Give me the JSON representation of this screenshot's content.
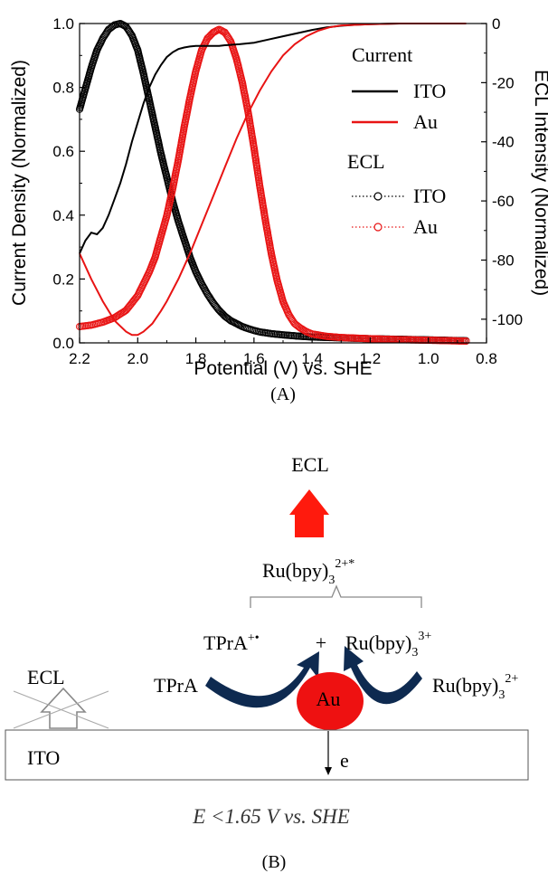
{
  "chart_data": {
    "type": "line",
    "xlabel": "Potential (V) vs. SHE",
    "ylabel": "Current Density (Normalized)",
    "ylabel_right": "ECL Intensity (Normalized)",
    "xlim": [
      2.2,
      0.8
    ],
    "ylim": [
      0.0,
      1.0
    ],
    "ylim_right": [
      -108,
      0
    ],
    "x_ticks": [
      "2.2",
      "2.0",
      "1.8",
      "1.6",
      "1.4",
      "1.2",
      "1.0",
      "0.8"
    ],
    "y_ticks": [
      "0.0",
      "0.2",
      "0.4",
      "0.6",
      "0.8",
      "1.0"
    ],
    "y_ticks_right": [
      "0",
      "-20",
      "-40",
      "-60",
      "-80",
      "-100"
    ],
    "legend_placement": "top-right",
    "legend": {
      "current_title": "Current",
      "ecl_title": "ECL",
      "ito_label": "ITO",
      "au_label": "Au"
    },
    "series": [
      {
        "group": "current",
        "name": "ITO",
        "color": "#000000",
        "style": "solid",
        "x": [
          2.2,
          2.18,
          2.16,
          2.14,
          2.12,
          2.1,
          2.08,
          2.06,
          2.04,
          2.02,
          2.0,
          1.98,
          1.96,
          1.94,
          1.92,
          1.9,
          1.88,
          1.86,
          1.84,
          1.82,
          1.8,
          1.78,
          1.76,
          1.74,
          1.72,
          1.7,
          1.65,
          1.6,
          1.55,
          1.5,
          1.45,
          1.4,
          1.35,
          1.3,
          1.25,
          1.2,
          1.1,
          1.0,
          0.87
        ],
        "y": [
          0.28,
          0.32,
          0.345,
          0.34,
          0.36,
          0.4,
          0.45,
          0.5,
          0.56,
          0.63,
          0.69,
          0.75,
          0.8,
          0.84,
          0.87,
          0.895,
          0.91,
          0.92,
          0.925,
          0.928,
          0.93,
          0.93,
          0.93,
          0.93,
          0.93,
          0.932,
          0.935,
          0.94,
          0.95,
          0.96,
          0.97,
          0.98,
          0.988,
          0.993,
          0.996,
          0.998,
          1.0,
          1.0,
          1.0
        ]
      },
      {
        "group": "current",
        "name": "Au",
        "color": "#e81414",
        "style": "solid",
        "x": [
          2.2,
          2.16,
          2.12,
          2.08,
          2.04,
          2.02,
          2.0,
          1.98,
          1.95,
          1.92,
          1.9,
          1.86,
          1.82,
          1.78,
          1.74,
          1.7,
          1.66,
          1.62,
          1.58,
          1.54,
          1.5,
          1.46,
          1.42,
          1.38,
          1.34,
          1.3,
          1.2,
          1.1,
          1.0,
          0.87
        ],
        "y": [
          0.28,
          0.2,
          0.13,
          0.07,
          0.035,
          0.025,
          0.025,
          0.035,
          0.06,
          0.1,
          0.13,
          0.2,
          0.28,
          0.37,
          0.46,
          0.55,
          0.64,
          0.72,
          0.79,
          0.85,
          0.9,
          0.935,
          0.96,
          0.977,
          0.988,
          0.994,
          0.998,
          1.0,
          1.0,
          1.0
        ]
      },
      {
        "group": "ecl",
        "name": "ITO",
        "color": "#000000",
        "style": "circles",
        "x": [
          2.2,
          2.18,
          2.16,
          2.14,
          2.12,
          2.1,
          2.08,
          2.06,
          2.04,
          2.02,
          2.0,
          1.98,
          1.96,
          1.94,
          1.92,
          1.9,
          1.88,
          1.86,
          1.84,
          1.82,
          1.8,
          1.78,
          1.76,
          1.74,
          1.72,
          1.7,
          1.68,
          1.66,
          1.64,
          1.62,
          1.6,
          1.58,
          1.56,
          1.54,
          1.52,
          1.5,
          1.45,
          1.4,
          1.3,
          1.2,
          1.1,
          1.0,
          0.87
        ],
        "y": [
          -29,
          -22,
          -15,
          -9,
          -5,
          -2,
          -0.5,
          0,
          -1,
          -4,
          -9,
          -17,
          -26,
          -35,
          -44,
          -52,
          -60,
          -67,
          -73,
          -79,
          -84,
          -88,
          -91.5,
          -94.5,
          -97,
          -99,
          -100.5,
          -101.5,
          -102.5,
          -103.2,
          -103.8,
          -104.3,
          -104.6,
          -104.9,
          -105.1,
          -105.3,
          -105.7,
          -106,
          -106.3,
          -106.6,
          -106.8,
          -107,
          -107.3
        ]
      },
      {
        "group": "ecl",
        "name": "Au",
        "color": "#e81414",
        "style": "circles",
        "x": [
          2.2,
          2.16,
          2.12,
          2.08,
          2.04,
          2.0,
          1.96,
          1.94,
          1.92,
          1.9,
          1.88,
          1.86,
          1.84,
          1.82,
          1.8,
          1.78,
          1.76,
          1.74,
          1.72,
          1.7,
          1.68,
          1.66,
          1.64,
          1.62,
          1.6,
          1.58,
          1.56,
          1.54,
          1.52,
          1.5,
          1.48,
          1.46,
          1.44,
          1.42,
          1.4,
          1.35,
          1.3,
          1.2,
          1.1,
          1.0,
          0.87
        ],
        "y": [
          -102.5,
          -102,
          -101,
          -99.5,
          -97,
          -92,
          -84,
          -79,
          -72,
          -65,
          -56,
          -46,
          -35,
          -25,
          -16,
          -9,
          -5,
          -3,
          -2,
          -3,
          -6,
          -12,
          -20,
          -30,
          -42,
          -55,
          -67,
          -78,
          -87,
          -94,
          -98.5,
          -101.5,
          -103,
          -104.2,
          -105,
          -105.8,
          -106.2,
          -106.6,
          -106.9,
          -107.1,
          -107.4
        ]
      }
    ]
  },
  "caption_a": "(A)",
  "diagram": {
    "ecl_top": "ECL",
    "ru_excited_base": "Ru(bpy)",
    "ru_excited_sub": "3",
    "ru_excited_sup": "2+*",
    "tpra_radical_base": "TPrA",
    "tpra_radical_sup": "+•",
    "plus": "+",
    "ru3_base": "Ru(bpy)",
    "ru3_sub": "3",
    "ru3_sup": "3+",
    "tpra": "TPrA",
    "ru2_base": "Ru(bpy)",
    "ru2_sub": "3",
    "ru2_sup": "2+",
    "ecl_left": "ECL",
    "au_label": "Au",
    "ito_label": "ITO",
    "electron_label": "e",
    "condition": "E <1.65 V vs. SHE",
    "caption_b": "(B)",
    "colors": {
      "arrow_red": "#ff1a0d",
      "au_red": "#ee1111",
      "curved_arrow": "#0e2a50",
      "bracket": "#8a8a8a"
    }
  }
}
